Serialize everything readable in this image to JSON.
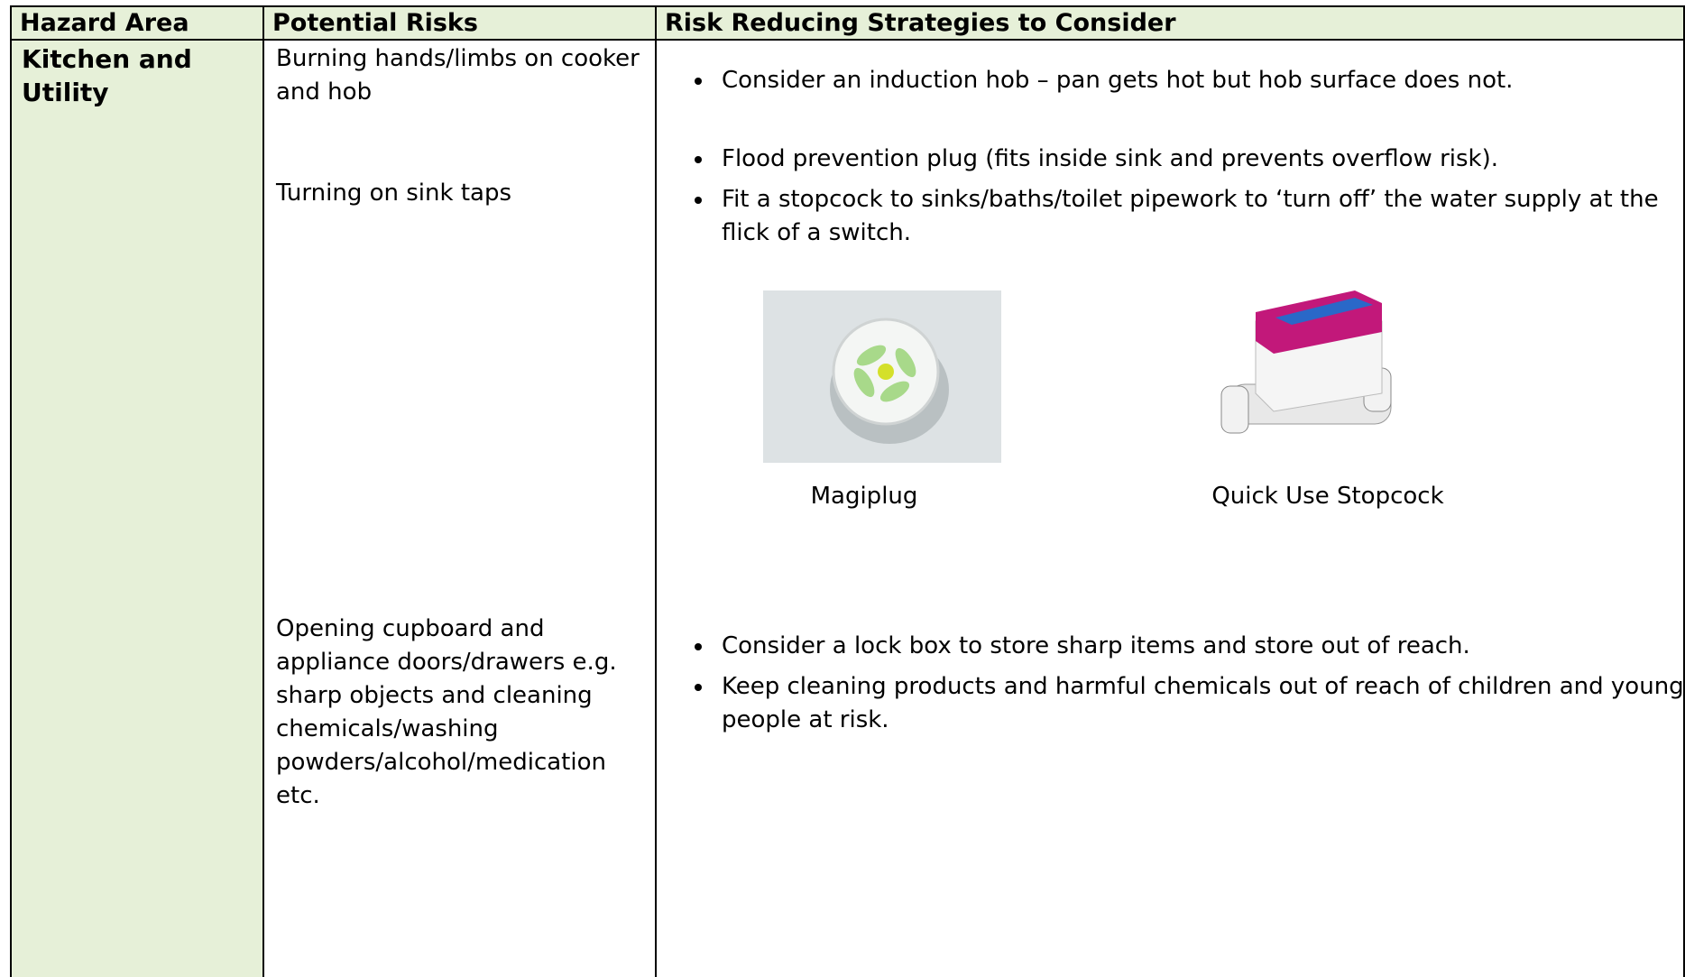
{
  "table": {
    "headers": [
      "Hazard Area",
      "Potential Risks",
      "Risk Reducing Strategies to Consider"
    ],
    "rows": [
      {
        "hazard_area": "Kitchen and Utility",
        "risks": [
          "Burning hands/limbs on cooker and hob",
          "Turning on sink taps",
          "Opening cupboard and appliance doors/drawers e.g. sharp objects and cleaning chemicals/washing powders/alcohol/medication etc."
        ],
        "strategies": [
          [
            "Consider an induction hob – pan gets hot but hob surface does not."
          ],
          [
            "Flood prevention plug (fits inside sink and prevents overflow risk).",
            "Fit a stopcock to sinks/baths/toilet pipework to ‘turn off’ the water supply at the flick of a switch."
          ],
          [
            "Consider a lock box to store sharp items and store out of reach.",
            "Keep cleaning products and harmful chemicals out of reach of children and young people at risk."
          ]
        ],
        "images": [
          {
            "caption": "Magiplug"
          },
          {
            "caption": "Quick Use Stopcock"
          }
        ]
      }
    ]
  }
}
